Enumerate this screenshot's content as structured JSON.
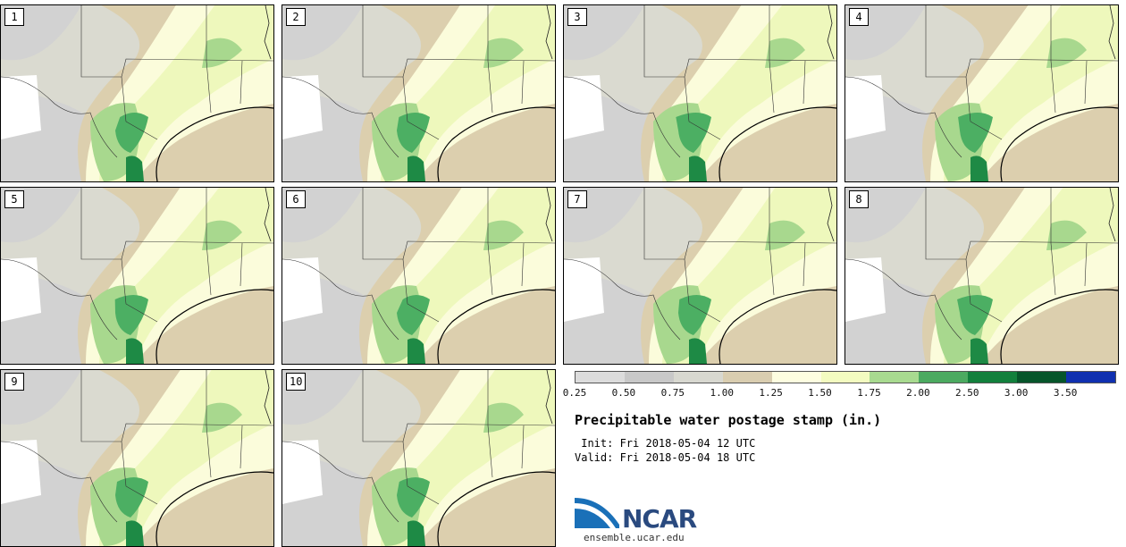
{
  "title": "Precipitable water postage stamp (in.)",
  "init": " Init: Fri 2018-05-04 12 UTC",
  "valid": "Valid: Fri 2018-05-04 18 UTC",
  "site": "ensemble.ucar.edu",
  "logo_text": "NCAR",
  "members": [
    "1",
    "2",
    "3",
    "4",
    "5",
    "6",
    "7",
    "8",
    "9",
    "10"
  ],
  "colorbar": {
    "ticks": [
      "0.25",
      "0.50",
      "0.75",
      "1.00",
      "1.25",
      "1.50",
      "1.75",
      "2.00",
      "2.50",
      "3.00",
      "3.50"
    ],
    "colors": [
      "#dcdcdc",
      "#c8c8c8",
      "#d8d8d0",
      "#d9cdb0",
      "#fdfde0",
      "#f3fbc0",
      "#a8da90",
      "#4caa60",
      "#12803c",
      "#06552a",
      "#1030b0"
    ]
  },
  "map_colors": {
    "dry": "#d2d2d2",
    "mid": "#dadad0",
    "tan": "#dccfae",
    "white": "#ffffff",
    "pale": "#fbfcdb",
    "yellow": "#eef8bc",
    "lightgreen": "#a8d88e",
    "green": "#4caf63",
    "darkgreen": "#1e8a45"
  }
}
